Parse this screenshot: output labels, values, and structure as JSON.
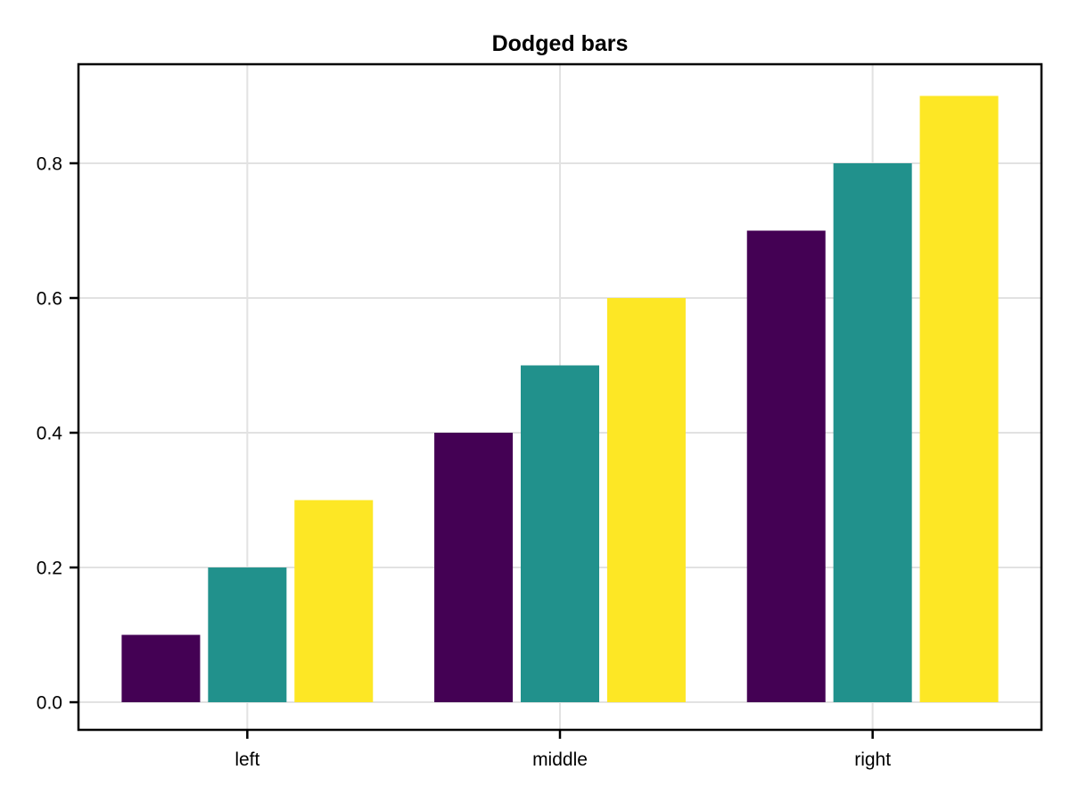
{
  "figure": {
    "background": "#ffffff"
  },
  "chart_data": {
    "type": "bar",
    "variant": "dodged",
    "title": "Dodged bars",
    "categories": [
      "left",
      "middle",
      "right"
    ],
    "category_positions": [
      1,
      2,
      3
    ],
    "series": [
      {
        "name": "purple",
        "color": "#440154",
        "values": [
          0.1,
          0.4,
          0.7
        ]
      },
      {
        "name": "teal",
        "color": "#21918c",
        "values": [
          0.2,
          0.5,
          0.8
        ]
      },
      {
        "name": "yellow",
        "color": "#fde725",
        "values": [
          0.3,
          0.6,
          0.9
        ]
      }
    ],
    "xlabel": "",
    "ylabel": "",
    "y_ticks": [
      0.0,
      0.2,
      0.4,
      0.6,
      0.8
    ],
    "y_tick_labels": [
      "0.0",
      "0.2",
      "0.4",
      "0.6",
      "0.8"
    ],
    "ylim": [
      -0.041,
      0.947
    ],
    "xlim": [
      0.46,
      3.54
    ],
    "bar_width": 0.251,
    "dodge_offset": 0.2764,
    "grid": true,
    "legend": "none",
    "colors": {
      "grid": "#e2e2e2",
      "spine": "#000000",
      "tick": "#000000",
      "text": "#000000",
      "background": "#ffffff"
    }
  }
}
